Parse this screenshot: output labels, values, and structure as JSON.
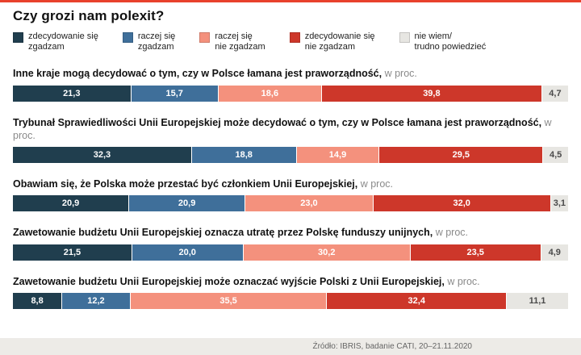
{
  "title": "Czy grozi nam polexit?",
  "source": "Źródło: IBRIS, badanie CATI, 20–21.11.2020",
  "accent_color": "#e8412c",
  "chart_data": {
    "type": "bar",
    "variant": "horizontal-stacked",
    "unit": "w proc.",
    "legend_position": "top",
    "categories": [
      "zdecydowanie się zgadzam",
      "raczej się zgadzam",
      "raczej się nie zgadzam",
      "zdecydowanie się nie zgadzam",
      "nie wiem/trudno powiedzieć"
    ],
    "colors": [
      "#203e4e",
      "#3f6f9a",
      "#f4917d",
      "#cd372a",
      "#e7e6e2"
    ],
    "legend": [
      {
        "lines": [
          "zdecydowanie się",
          "zgadzam"
        ],
        "color": "#203e4e"
      },
      {
        "lines": [
          "raczej się",
          "zgadzam"
        ],
        "color": "#3f6f9a"
      },
      {
        "lines": [
          "raczej się",
          "nie zgadzam"
        ],
        "color": "#f4917d"
      },
      {
        "lines": [
          "zdecydowanie się",
          "nie zgadzam"
        ],
        "color": "#cd372a"
      },
      {
        "lines": [
          "nie wiem/",
          "trudno powiedzieć"
        ],
        "color": "#e7e6e2"
      }
    ],
    "questions": [
      {
        "title": "Inne kraje mogą decydować o tym, czy w Polsce łamana jest praworządność,",
        "suffix": "w proc.",
        "values": [
          21.3,
          15.7,
          18.6,
          39.8,
          4.7
        ],
        "labels": [
          "21,3",
          "15,7",
          "18,6",
          "39,8",
          "4,7"
        ]
      },
      {
        "title": "Trybunał Sprawiedliwości Unii Europejskiej może decydować o tym, czy w Polsce łamana jest praworządność,",
        "suffix": "w proc.",
        "values": [
          32.3,
          18.8,
          14.9,
          29.5,
          4.5
        ],
        "labels": [
          "32,3",
          "18,8",
          "14,9",
          "29,5",
          "4,5"
        ]
      },
      {
        "title": "Obawiam się, że Polska może przestać być członkiem Unii Europejskiej,",
        "suffix": "w proc.",
        "values": [
          20.9,
          20.9,
          23.0,
          32.0,
          3.1
        ],
        "labels": [
          "20,9",
          "20,9",
          "23,0",
          "32,0",
          "3,1"
        ]
      },
      {
        "title": "Zawetowanie budżetu Unii Europejskiej oznacza utratę przez Polskę funduszy unijnych,",
        "suffix": "w proc.",
        "values": [
          21.5,
          20.0,
          30.2,
          23.5,
          4.9
        ],
        "labels": [
          "21,5",
          "20,0",
          "30,2",
          "23,5",
          "4,9"
        ]
      },
      {
        "title": "Zawetowanie budżetu Unii Europejskiej może oznaczać wyjście Polski z Unii Europejskiej,",
        "suffix": "w proc.",
        "values": [
          8.8,
          12.2,
          35.5,
          32.4,
          11.1
        ],
        "labels": [
          "8,8",
          "12,2",
          "35,5",
          "32,4",
          "11,1"
        ]
      }
    ]
  }
}
